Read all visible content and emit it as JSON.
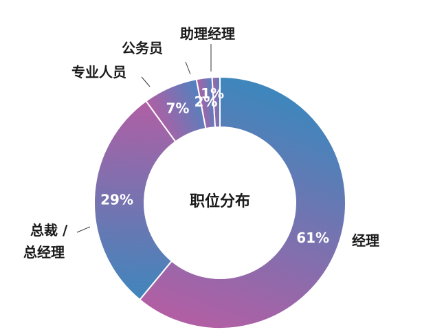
{
  "chart_data": {
    "type": "pie",
    "title": "职位分布",
    "slices": [
      {
        "name": "经理",
        "value": 61,
        "label": "61%",
        "colors": [
          "#3f86bc",
          "#b05fa4"
        ]
      },
      {
        "name": "总裁 / 总经理",
        "value": 29,
        "label": "29%",
        "colors": [
          "#3f86bc",
          "#b05fa4"
        ]
      },
      {
        "name": "专业人员",
        "value": 7,
        "label": "7%",
        "colors": [
          "#b05fa4",
          "#4f82bf"
        ]
      },
      {
        "name": "公务员",
        "value": 2,
        "label": "2%",
        "colors": [
          "#b05fa4",
          "#4f82bf"
        ]
      },
      {
        "name": "助理经理",
        "value": 1,
        "label": "1%",
        "colors": [
          "#b05fa4",
          "#4f82bf"
        ]
      }
    ]
  },
  "labels": {
    "manager": "经理",
    "president_line1": "总裁 /",
    "president_line2": "总经理",
    "professional": "专业人员",
    "civil_servant": "公务员",
    "assistant_manager": "助理经理",
    "center": "职位分布"
  }
}
